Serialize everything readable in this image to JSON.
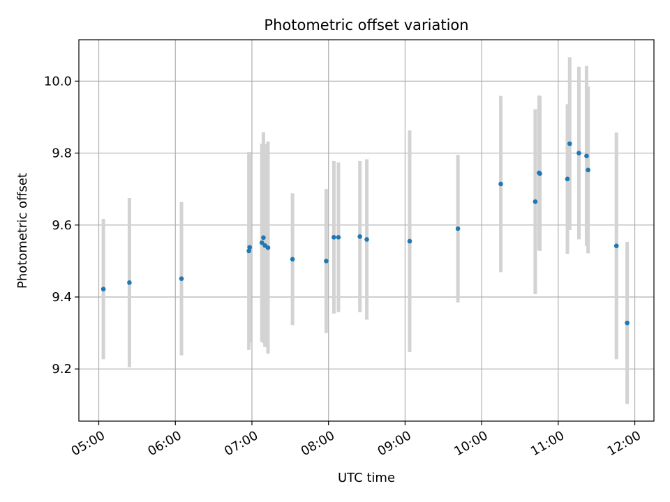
{
  "chart_data": {
    "type": "scatter",
    "title": "Photometric offset variation",
    "xlabel": "UTC time",
    "ylabel": "Photometric offset",
    "x_unit": "hour",
    "xlim": [
      4.74,
      12.25
    ],
    "ylim": [
      9.055,
      10.115
    ],
    "xticks": [
      {
        "value": 5,
        "label": "05:00"
      },
      {
        "value": 6,
        "label": "06:00"
      },
      {
        "value": 7,
        "label": "07:00"
      },
      {
        "value": 8,
        "label": "08:00"
      },
      {
        "value": 9,
        "label": "09:00"
      },
      {
        "value": 10,
        "label": "10:00"
      },
      {
        "value": 11,
        "label": "11:00"
      },
      {
        "value": 12,
        "label": "12:00"
      }
    ],
    "yticks": [
      {
        "value": 9.2,
        "label": "9.2"
      },
      {
        "value": 9.4,
        "label": "9.4"
      },
      {
        "value": 9.6,
        "label": "9.6"
      },
      {
        "value": 9.8,
        "label": "9.8"
      },
      {
        "value": 10.0,
        "label": "10.0"
      }
    ],
    "grid": true,
    "colors": {
      "point": "#1f77b4",
      "errorbar": "#d3d3d3",
      "grid": "#b0b0b0"
    },
    "points": [
      {
        "x": 5.06,
        "y": 9.422,
        "err": 0.195
      },
      {
        "x": 5.4,
        "y": 9.44,
        "err": 0.235
      },
      {
        "x": 6.08,
        "y": 9.451,
        "err": 0.213
      },
      {
        "x": 6.96,
        "y": 9.528,
        "err": 0.275
      },
      {
        "x": 6.97,
        "y": 9.538,
        "err": 0.265
      },
      {
        "x": 7.13,
        "y": 9.551,
        "err": 0.275
      },
      {
        "x": 7.15,
        "y": 9.565,
        "err": 0.293
      },
      {
        "x": 7.17,
        "y": 9.543,
        "err": 0.282
      },
      {
        "x": 7.21,
        "y": 9.537,
        "err": 0.295
      },
      {
        "x": 7.53,
        "y": 9.505,
        "err": 0.183
      },
      {
        "x": 7.97,
        "y": 9.5,
        "err": 0.2
      },
      {
        "x": 8.07,
        "y": 9.566,
        "err": 0.212
      },
      {
        "x": 8.13,
        "y": 9.566,
        "err": 0.208
      },
      {
        "x": 8.41,
        "y": 9.568,
        "err": 0.21
      },
      {
        "x": 8.5,
        "y": 9.56,
        "err": 0.223
      },
      {
        "x": 9.06,
        "y": 9.555,
        "err": 0.308
      },
      {
        "x": 9.69,
        "y": 9.59,
        "err": 0.205
      },
      {
        "x": 10.25,
        "y": 9.714,
        "err": 0.245
      },
      {
        "x": 10.7,
        "y": 9.665,
        "err": 0.257
      },
      {
        "x": 10.75,
        "y": 9.745,
        "err": 0.215
      },
      {
        "x": 10.76,
        "y": 9.743,
        "err": 0.215
      },
      {
        "x": 11.12,
        "y": 9.728,
        "err": 0.208
      },
      {
        "x": 11.15,
        "y": 9.826,
        "err": 0.24
      },
      {
        "x": 11.27,
        "y": 9.8,
        "err": 0.24
      },
      {
        "x": 11.37,
        "y": 9.792,
        "err": 0.25
      },
      {
        "x": 11.39,
        "y": 9.753,
        "err": 0.232
      },
      {
        "x": 11.76,
        "y": 9.542,
        "err": 0.315
      },
      {
        "x": 11.9,
        "y": 9.328,
        "err": 0.225
      }
    ]
  }
}
